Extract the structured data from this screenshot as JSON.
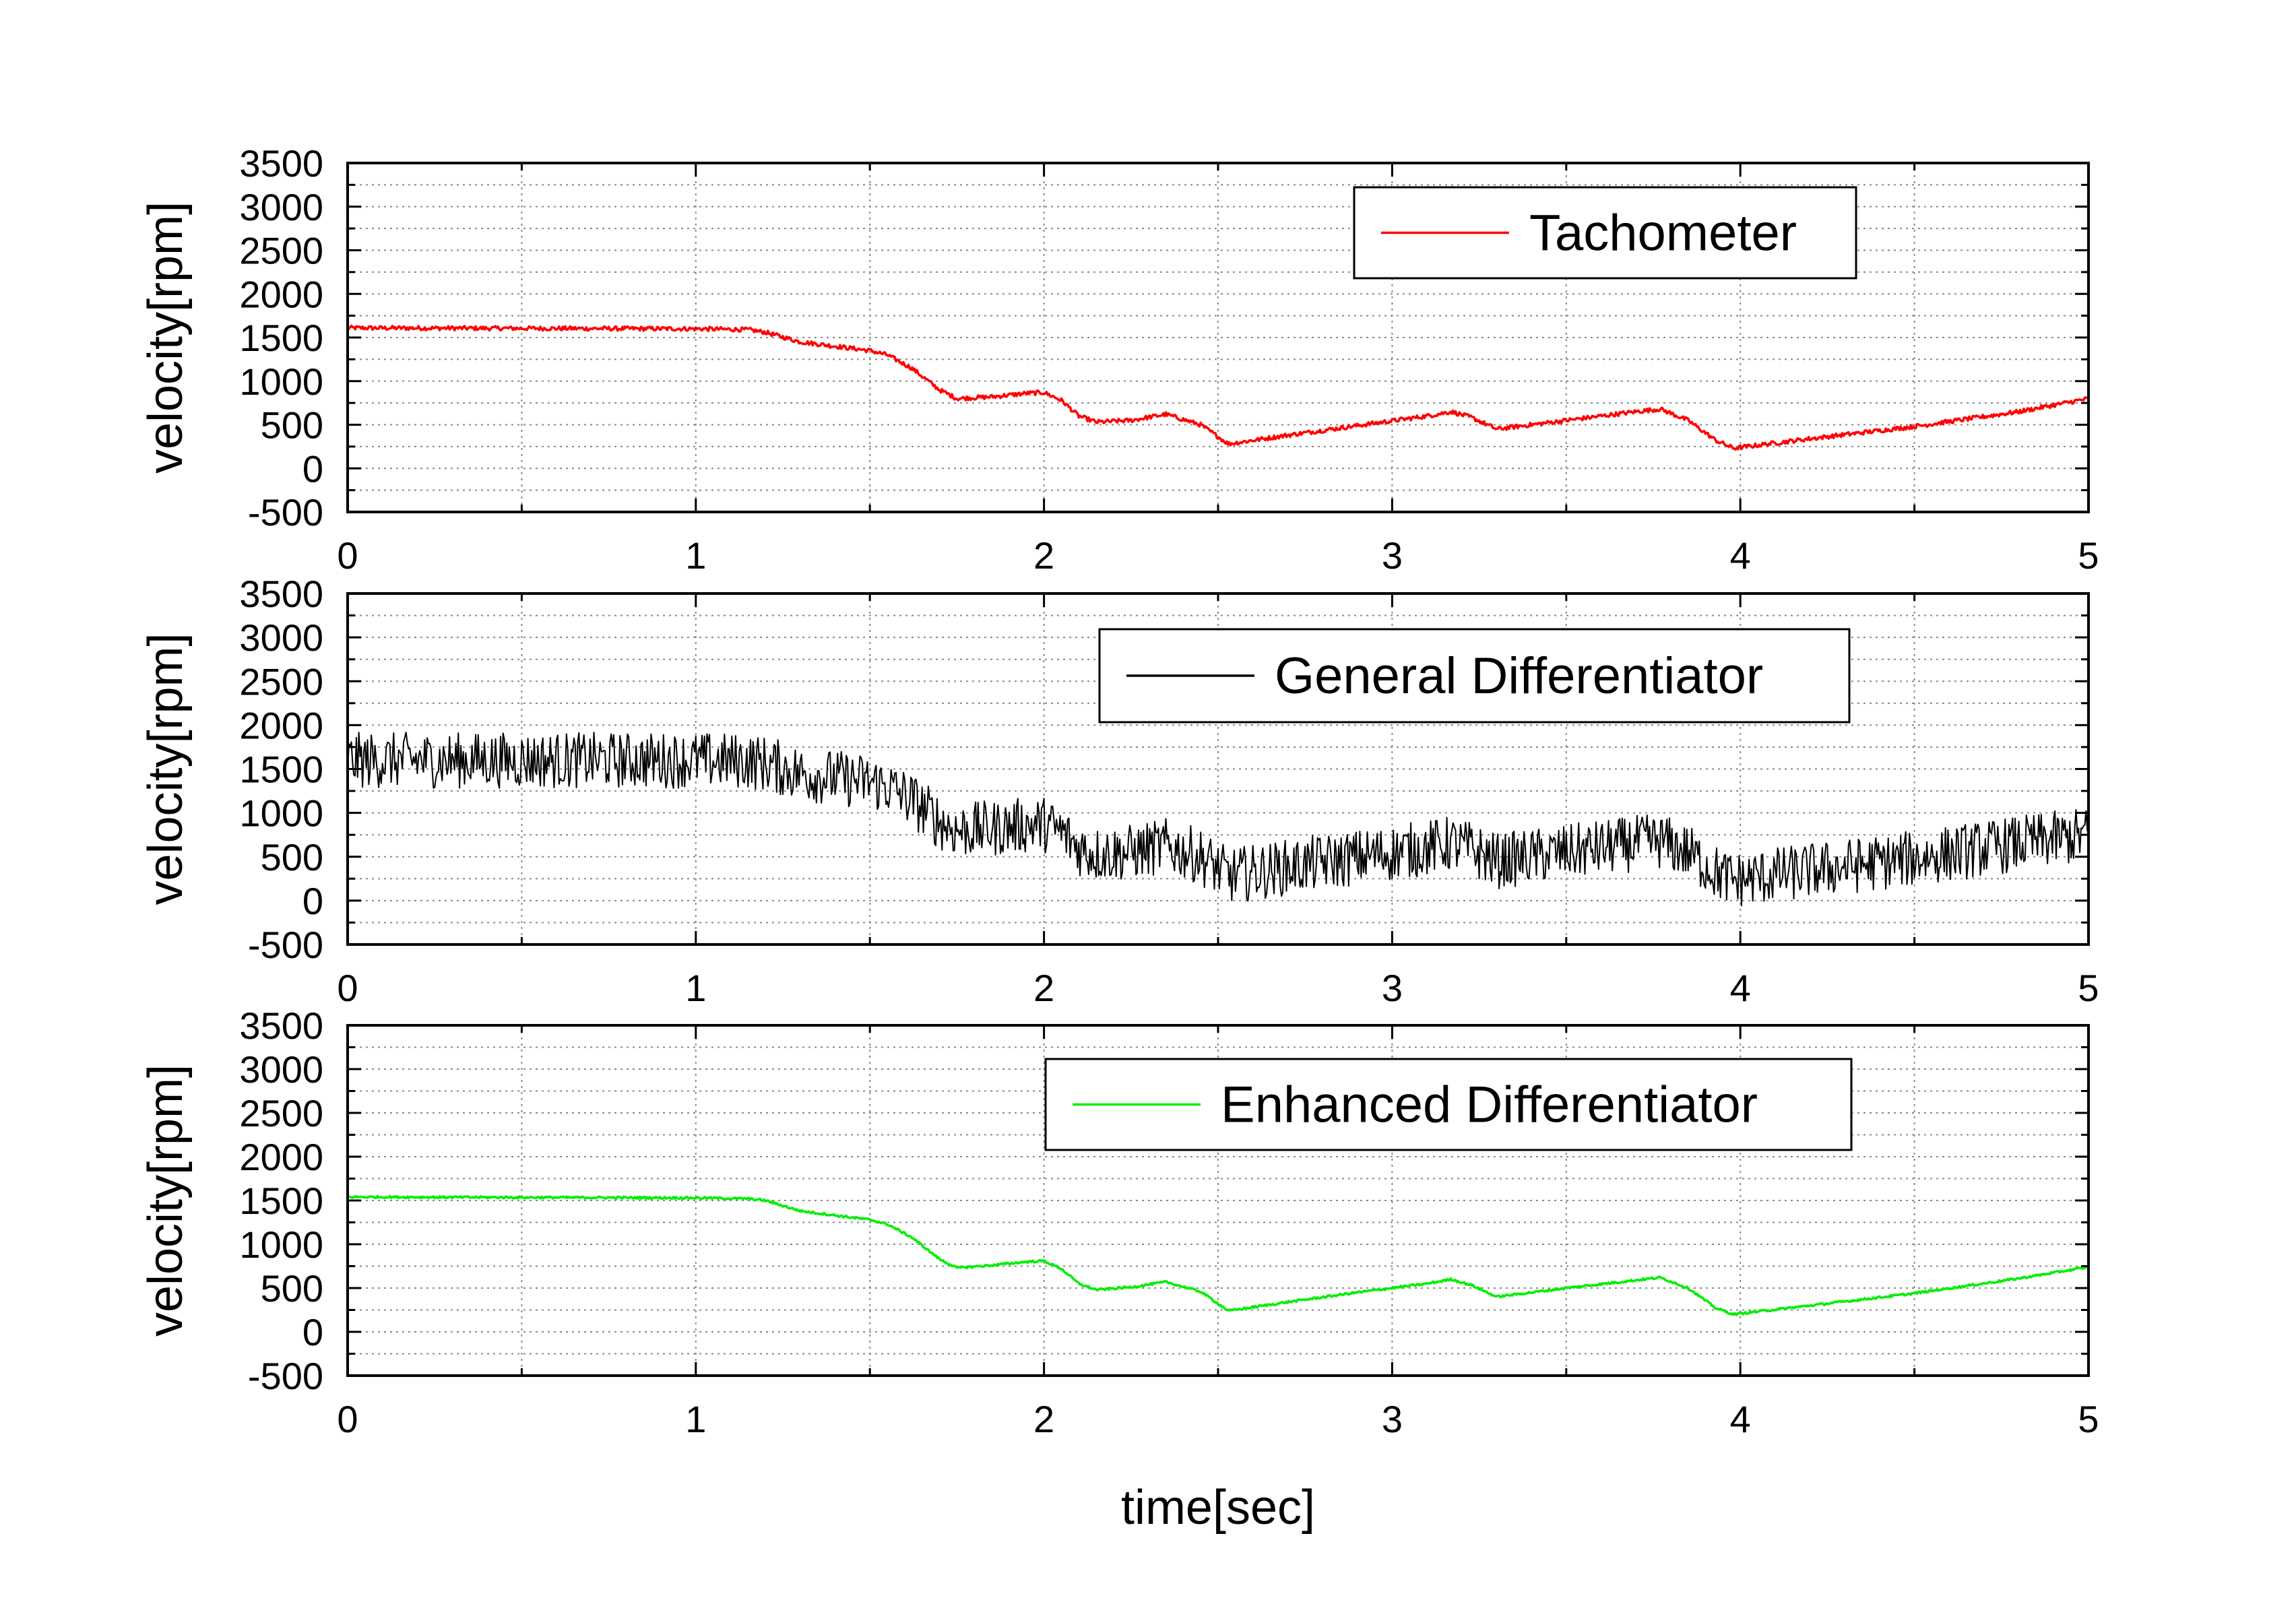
{
  "figure": {
    "xlabel": "time[sec]"
  },
  "chart_data": [
    {
      "type": "line",
      "ylabel": "velocity[rpm]",
      "xlim": [
        0,
        5
      ],
      "ylim": [
        -500,
        3500
      ],
      "x_ticks": [
        "0",
        "1",
        "2",
        "3",
        "4",
        "5"
      ],
      "y_ticks": [
        "3500",
        "3000",
        "2500",
        "2000",
        "1500",
        "1000",
        "500",
        "0",
        "-500"
      ],
      "grid": true,
      "legend_position": "top-right",
      "series": [
        {
          "name": "Tachometer",
          "color": "#ff0000",
          "noise_amplitude_rpm": 25,
          "x": [
            0,
            0.5,
            1.0,
            1.15,
            1.2,
            1.3,
            1.5,
            1.55,
            1.62,
            1.7,
            1.75,
            1.85,
            1.95,
            2.0,
            2.05,
            2.1,
            2.15,
            2.25,
            2.35,
            2.45,
            2.53,
            2.7,
            2.9,
            3.1,
            3.17,
            3.23,
            3.3,
            3.5,
            3.7,
            3.77,
            3.85,
            3.93,
            3.98,
            4.2,
            4.5,
            4.8,
            5.0
          ],
          "y": [
            1610,
            1605,
            1600,
            1590,
            1560,
            1450,
            1350,
            1300,
            1150,
            900,
            800,
            820,
            860,
            870,
            780,
            600,
            530,
            550,
            620,
            500,
            280,
            380,
            490,
            600,
            650,
            580,
            450,
            550,
            650,
            680,
            550,
            320,
            230,
            340,
            480,
            650,
            800
          ]
        }
      ]
    },
    {
      "type": "line",
      "ylabel": "velocity[rpm]",
      "xlim": [
        0,
        5
      ],
      "ylim": [
        -500,
        3500
      ],
      "x_ticks": [
        "0",
        "1",
        "2",
        "3",
        "4",
        "5"
      ],
      "y_ticks": [
        "3500",
        "3000",
        "2500",
        "2000",
        "1500",
        "1000",
        "500",
        "0",
        "-500"
      ],
      "grid": true,
      "legend_position": "top-right",
      "series": [
        {
          "name": "General Differentiator",
          "color": "#000000",
          "noise_amplitude_rpm": 320,
          "x": [
            0,
            0.5,
            1.0,
            1.15,
            1.2,
            1.3,
            1.5,
            1.55,
            1.62,
            1.7,
            1.75,
            1.85,
            1.95,
            2.0,
            2.05,
            2.1,
            2.15,
            2.25,
            2.35,
            2.45,
            2.53,
            2.7,
            2.9,
            3.1,
            3.17,
            3.23,
            3.3,
            3.5,
            3.7,
            3.77,
            3.85,
            3.93,
            3.98,
            4.2,
            4.5,
            4.8,
            5.0
          ],
          "y": [
            1600,
            1600,
            1600,
            1590,
            1560,
            1450,
            1350,
            1300,
            1150,
            900,
            800,
            820,
            860,
            870,
            780,
            600,
            530,
            550,
            620,
            500,
            280,
            380,
            490,
            600,
            650,
            580,
            450,
            550,
            650,
            680,
            550,
            320,
            230,
            340,
            480,
            650,
            750
          ]
        }
      ]
    },
    {
      "type": "line",
      "ylabel": "velocity[rpm]",
      "xlim": [
        0,
        5
      ],
      "ylim": [
        -500,
        3500
      ],
      "x_ticks": [
        "0",
        "1",
        "2",
        "3",
        "4",
        "5"
      ],
      "y_ticks": [
        "3500",
        "3000",
        "2500",
        "2000",
        "1500",
        "1000",
        "500",
        "0",
        "-500"
      ],
      "grid": true,
      "legend_position": "top-right",
      "series": [
        {
          "name": "Enhanced Differentiator",
          "color": "#00ee00",
          "noise_amplitude_rpm": 12,
          "x": [
            0,
            0.5,
            1.0,
            1.15,
            1.2,
            1.3,
            1.5,
            1.55,
            1.62,
            1.7,
            1.75,
            1.85,
            1.95,
            2.0,
            2.05,
            2.1,
            2.15,
            2.25,
            2.35,
            2.45,
            2.53,
            2.7,
            2.9,
            3.1,
            3.17,
            3.23,
            3.3,
            3.5,
            3.7,
            3.77,
            3.85,
            3.93,
            3.98,
            4.2,
            4.5,
            4.8,
            5.0
          ],
          "y": [
            1540,
            1535,
            1530,
            1520,
            1500,
            1380,
            1280,
            1230,
            1080,
            830,
            730,
            760,
            800,
            810,
            720,
            550,
            480,
            510,
            570,
            460,
            240,
            340,
            450,
            550,
            600,
            530,
            400,
            500,
            590,
            620,
            500,
            270,
            200,
            300,
            440,
            610,
            740
          ]
        }
      ]
    }
  ]
}
